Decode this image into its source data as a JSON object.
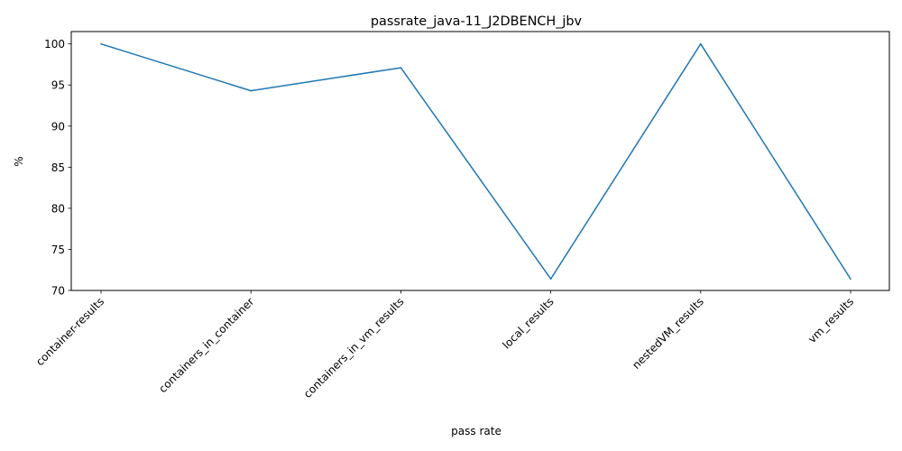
{
  "chart_data": {
    "type": "line",
    "title": "passrate_java-11_J2DBENCH_jbv",
    "xlabel": "pass rate",
    "ylabel": "%",
    "categories": [
      "container-results",
      "containers_in_container",
      "containers_in_vm_results",
      "local_results",
      "nestedVM_results",
      "vm_results"
    ],
    "series": [
      {
        "values": [
          100.0,
          94.3,
          97.1,
          71.4,
          100.0,
          71.4
        ],
        "color": "#1f77b4"
      }
    ],
    "ylim": [
      70,
      101.5
    ],
    "yticks": [
      "70",
      "75",
      "80",
      "85",
      "90",
      "95",
      "100"
    ],
    "grid": false,
    "xtick_rotation": 45
  }
}
